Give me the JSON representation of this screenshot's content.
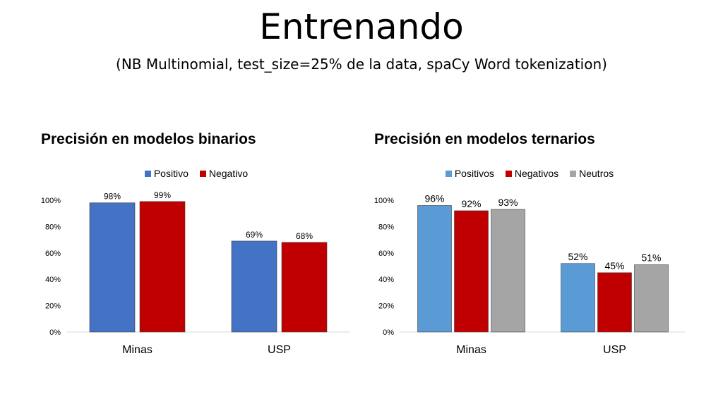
{
  "slide": {
    "title": "Entrenando",
    "subtitle": "(NB Multinomial, test_size=25% de la data, spaCy Word tokenization)"
  },
  "chart_data": [
    {
      "type": "bar",
      "title": "Precisión en modelos binarios",
      "categories": [
        "Minas",
        "USP"
      ],
      "series": [
        {
          "name": "Positivo",
          "values": [
            98,
            69
          ],
          "color": "#4472C4"
        },
        {
          "name": "Negativo",
          "values": [
            99,
            68
          ],
          "color": "#C00000"
        }
      ],
      "ylim": [
        0,
        100
      ],
      "yticks": [
        "0%",
        "20%",
        "40%",
        "60%",
        "80%",
        "100%"
      ],
      "value_suffix": "%",
      "legend": "top",
      "grid": false
    },
    {
      "type": "bar",
      "title": "Precisión en modelos ternarios",
      "categories": [
        "Minas",
        "USP"
      ],
      "series": [
        {
          "name": "Positivos",
          "values": [
            96,
            52
          ],
          "color": "#5B9BD5"
        },
        {
          "name": "Negativos",
          "values": [
            92,
            45
          ],
          "color": "#C00000"
        },
        {
          "name": "Neutros",
          "values": [
            93,
            51
          ],
          "color": "#A5A5A5"
        }
      ],
      "ylim": [
        0,
        100
      ],
      "yticks": [
        "0%",
        "20%",
        "40%",
        "60%",
        "80%",
        "100%"
      ],
      "value_suffix": "%",
      "legend": "top",
      "grid": false
    }
  ]
}
